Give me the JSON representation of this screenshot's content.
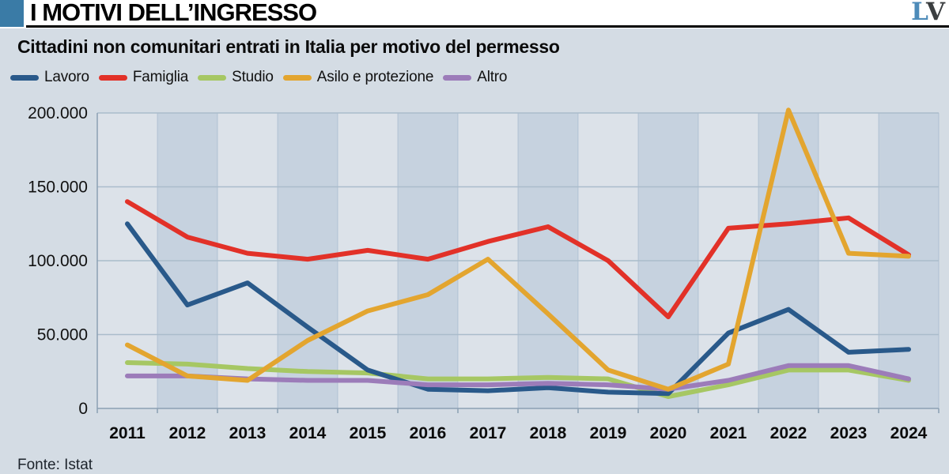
{
  "header": {
    "title": "I MOTIVI DELL’INGRESSO",
    "logo": {
      "l": "L",
      "v": "V"
    }
  },
  "subtitle": "Cittadini non comunitari entrati in Italia per motivo del permesso",
  "source": "Fonte: Istat",
  "colors": {
    "accent_square": "#3a7ba6",
    "logo_l": "#4d8bb9",
    "logo_v": "#3b3e40",
    "card_bg": "#d4dce4",
    "band_light": "#dce2e9",
    "band_dark": "#c6d2df",
    "grid": "#aabccb",
    "axis": "#8ba0b3",
    "tick_text": "#111111"
  },
  "chart_data": {
    "type": "line",
    "title": "Cittadini non comunitari entrati in Italia per motivo del permesso",
    "x": [
      "2011",
      "2012",
      "2013",
      "2014",
      "2015",
      "2016",
      "2017",
      "2018",
      "2019",
      "2020",
      "2021",
      "2022",
      "2023",
      "2024"
    ],
    "series": [
      {
        "name": "Lavoro",
        "color": "#29598a",
        "values": [
          125000,
          70000,
          85000,
          55000,
          26000,
          13000,
          12000,
          14000,
          11000,
          10000,
          51000,
          67000,
          38000,
          40000
        ]
      },
      {
        "name": "Famiglia",
        "color": "#e23128",
        "values": [
          140000,
          116000,
          105000,
          101000,
          107000,
          101000,
          113000,
          123000,
          100000,
          62000,
          122000,
          125000,
          129000,
          104000
        ]
      },
      {
        "name": "Studio",
        "color": "#a6c763",
        "values": [
          31000,
          30000,
          27000,
          25000,
          24000,
          20000,
          20000,
          21000,
          20000,
          8000,
          16000,
          26000,
          26000,
          19000
        ]
      },
      {
        "name": "Asilo e protezione",
        "color": "#e3a52f",
        "values": [
          43000,
          22000,
          19000,
          46000,
          66000,
          77000,
          101000,
          64000,
          26000,
          13000,
          30000,
          202000,
          105000,
          103000
        ]
      },
      {
        "name": "Altro",
        "color": "#9c7cb9",
        "values": [
          22000,
          22000,
          20000,
          19000,
          19000,
          16000,
          16000,
          17000,
          16000,
          13000,
          19000,
          29000,
          29000,
          20000
        ]
      }
    ],
    "xlabel": "",
    "ylabel": "",
    "ylim": [
      0,
      200000
    ],
    "yticks": [
      0,
      50000,
      100000,
      150000,
      200000
    ],
    "ytick_labels": [
      "0",
      "50.000",
      "100.000",
      "150.000",
      "200.000"
    ],
    "grid": true,
    "legend_position": "top",
    "plot_background": "alternating-vertical-bands"
  }
}
